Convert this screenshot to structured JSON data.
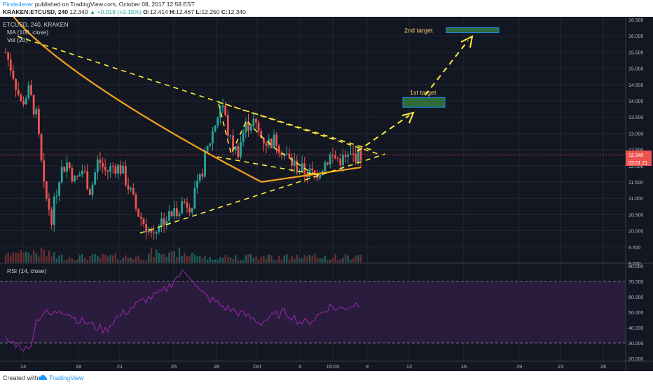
{
  "header": {
    "author": "Pirate4ever",
    "published": "published on TradingView.com, October 08, 2017 12:58 EST",
    "symbol": "KRAKEN:ETCUSD, 240",
    "price": "12.340",
    "change": "+0.019 (+0.15%)",
    "o_label": "O:",
    "o": "12.414",
    "h_label": "H:",
    "h": "12.467",
    "l_label": "L:",
    "l": "12.250",
    "c_label": "C:",
    "c": "12.340"
  },
  "legend": {
    "symbol": "ETCUSD, 240, KRAKEN",
    "ma": "MA (100, close)",
    "vol": "Vol (20)",
    "rsi": "RSI (14, close)"
  },
  "footer": {
    "created": "Created with",
    "brand": "TradingView"
  },
  "colors": {
    "bg": "#131722",
    "up": "#26a69a",
    "down": "#ef5350",
    "ma": "#f7a21b",
    "trend": "#ffeb3b",
    "rsi": "#9c27b0",
    "target_text": "#f0c76e"
  },
  "chart_data": [
    {
      "type": "candlestick",
      "title": "ETCUSD, 240, KRAKEN",
      "x_tick_labels": [
        "14",
        "18",
        "21",
        "25",
        "28",
        "Oct",
        "4",
        "15:00",
        "9",
        "12",
        "16",
        "19",
        "23",
        "26"
      ],
      "y_tick_labels": [
        "9.000",
        "9.500",
        "10.000",
        "10.500",
        "11.000",
        "11.500",
        "12.000",
        "12.500",
        "13.000",
        "13.500",
        "14.000",
        "14.500",
        "15.000",
        "15.500",
        "16.000",
        "16.500"
      ],
      "ylim": [
        9.0,
        16.6
      ],
      "price_label": "12.340",
      "countdown_label": "02:01:21",
      "close_series_approx": [
        15.5,
        14.8,
        13.9,
        14.3,
        13.5,
        11.2,
        10.4,
        11.8,
        12.1,
        11.5,
        11.9,
        11.2,
        12.2,
        11.8,
        12.0,
        11.9,
        11.3,
        10.6,
        10.2,
        9.9,
        10.3,
        10.4,
        10.6,
        10.9,
        10.8,
        11.4,
        12.4,
        13.2,
        14.0,
        12.8,
        12.4,
        13.2,
        13.4,
        12.9,
        12.7,
        12.8,
        12.4,
        12.1,
        11.9,
        11.8,
        11.7,
        12.0,
        12.3,
        12.2,
        12.2,
        12.3,
        12.34
      ],
      "ma_label": "MA (100, close)",
      "targets": [
        {
          "label": "1st target",
          "low": 13.8,
          "high": 14.1
        },
        {
          "label": "2nd target",
          "low": 16.1,
          "high": 16.25
        }
      ],
      "annotations": [
        "triangle trendlines",
        "projected breakout arrows"
      ]
    },
    {
      "type": "line",
      "title": "RSI (14, close)",
      "y_tick_labels": [
        "20.000",
        "30.000",
        "40.000",
        "50.000",
        "60.000",
        "70.000",
        "80.000"
      ],
      "ylim": [
        18,
        82
      ],
      "bands": [
        30,
        70
      ],
      "values_approx": [
        32,
        30,
        28,
        25,
        45,
        50,
        48,
        52,
        50,
        46,
        44,
        42,
        40,
        38,
        45,
        48,
        52,
        55,
        58,
        60,
        62,
        66,
        72,
        76,
        74,
        64,
        60,
        57,
        54,
        52,
        50,
        48,
        46,
        43,
        46,
        48,
        50,
        48,
        44,
        43,
        46,
        50,
        54,
        52,
        53,
        55,
        56
      ]
    }
  ]
}
